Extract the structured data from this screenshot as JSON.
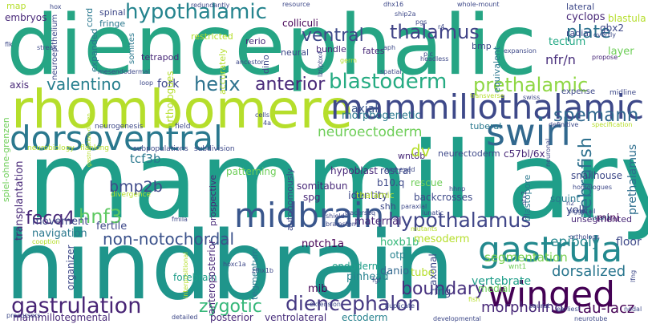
{
  "palette": {
    "yellow_green": "#b5de2b",
    "green": "#6ece58",
    "teal_green": "#1f9e89",
    "teal": "#26828e",
    "blue": "#31688e",
    "indigo": "#3e4989",
    "purple": "#482878",
    "dark": "#440154"
  },
  "words": [
    {
      "text": "diencephalic",
      "color": "#26a584",
      "weight": 5
    },
    {
      "text": "mammillary",
      "color": "#1f9e89",
      "weight": 5
    },
    {
      "text": "hindbrain",
      "color": "#1f958b",
      "weight": 5
    },
    {
      "text": "rhombomere",
      "color": "#b5de2b",
      "weight": 4
    },
    {
      "text": "mammillothalamic",
      "color": "#3e4989",
      "weight": 4
    },
    {
      "text": "dorsoventral",
      "color": "#2a788e",
      "weight": 4
    },
    {
      "text": "swirl",
      "color": "#31688e",
      "weight": 4
    },
    {
      "text": "gastrula",
      "color": "#23898e",
      "weight": 4
    },
    {
      "text": "midbrain",
      "color": "#39568c",
      "weight": 4
    },
    {
      "text": "winged",
      "color": "#440154",
      "weight": 4
    },
    {
      "text": "hypothalamic",
      "color": "#25848e",
      "weight": 3
    },
    {
      "text": "blastoderm",
      "color": "#25ab82",
      "weight": 3
    },
    {
      "text": "gastrulation",
      "color": "#482475",
      "weight": 3
    },
    {
      "text": "diencephalon",
      "color": "#453882",
      "weight": 3
    },
    {
      "text": "hypothalamus",
      "color": "#404688",
      "weight": 3
    },
    {
      "text": "ventral",
      "color": "#3e4989",
      "weight": 3
    },
    {
      "text": "thalamus",
      "color": "#414487",
      "weight": 3
    },
    {
      "text": "spemann",
      "color": "#31688e",
      "weight": 3
    },
    {
      "text": "prethalamic",
      "color": "#8fd744",
      "weight": 3
    },
    {
      "text": "zebrafish",
      "color": "#2d708e",
      "weight": 3
    },
    {
      "text": "helix",
      "color": "#2c728e",
      "weight": 3
    },
    {
      "text": "anterior",
      "color": "#482878",
      "weight": 3
    },
    {
      "text": "valentino",
      "color": "#277f8e",
      "weight": 3
    },
    {
      "text": "plate",
      "color": "#2c728e",
      "weight": 3
    },
    {
      "text": "boundary",
      "color": "#46307e",
      "weight": 3
    },
    {
      "text": "dorsalized",
      "color": "#2a768e",
      "weight": 3
    },
    {
      "text": "zygotic",
      "color": "#35b779",
      "weight": 3
    },
    {
      "text": "hnf3",
      "color": "#5ec962",
      "weight": 3
    },
    {
      "text": "fecq4",
      "color": "#482878",
      "weight": 3
    },
    {
      "text": "non-notochordal",
      "color": "#3b528b",
      "weight": 3
    },
    {
      "text": "neuroectoderm",
      "color": "#6ece58",
      "weight": 2
    },
    {
      "text": "bmp2b",
      "color": "#3e4989",
      "weight": 2
    },
    {
      "text": "epiboly",
      "color": "#24868e",
      "weight": 2
    },
    {
      "text": "morpholino",
      "color": "#482878",
      "weight": 2
    },
    {
      "text": "tau-lacz",
      "color": "#440154",
      "weight": 2
    },
    {
      "text": "segmentation",
      "color": "#7ad151",
      "weight": 2
    },
    {
      "text": "vertebrate",
      "color": "#1f9e89",
      "weight": 2
    },
    {
      "text": "mammillotegmental",
      "color": "#482878",
      "weight": 2
    },
    {
      "text": "ventrolateral",
      "color": "#472d7b",
      "weight": 2
    },
    {
      "text": "ectoderm",
      "color": "#26828e",
      "weight": 2
    },
    {
      "text": "posterior",
      "color": "#482878",
      "weight": 2
    },
    {
      "text": "prethalamus",
      "color": "#2e6e8e",
      "weight": 2
    },
    {
      "text": "axial",
      "color": "#39568c",
      "weight": 2
    },
    {
      "text": "morphogenetic",
      "color": "#2a788e",
      "weight": 2
    },
    {
      "text": "nfr/n",
      "color": "#472d7b",
      "weight": 2
    },
    {
      "text": "tectum",
      "color": "#22a884",
      "weight": 2
    },
    {
      "text": "layer",
      "color": "#6ece58",
      "weight": 2
    },
    {
      "text": "cyclops",
      "color": "#482878",
      "weight": 2
    },
    {
      "text": "gbx2",
      "color": "#3e4989",
      "weight": 2
    },
    {
      "text": "blastula",
      "color": "#b5de2b",
      "weight": 2
    },
    {
      "text": "tcf3b",
      "color": "#2a788e",
      "weight": 2
    },
    {
      "text": "fork",
      "color": "#3e4989",
      "weight": 2
    },
    {
      "text": "orthologues",
      "color": "#b5de2b",
      "weight": 2
    },
    {
      "text": "hypoblast",
      "color": "#482878",
      "weight": 2
    },
    {
      "text": "patterning",
      "color": "#6ece58",
      "weight": 2
    },
    {
      "text": "transplantation",
      "color": "#482878",
      "weight": 2
    },
    {
      "text": "navigation",
      "color": "#2a788e",
      "weight": 2
    },
    {
      "text": "movement",
      "color": "#3e4989",
      "weight": 2
    },
    {
      "text": "fertile",
      "color": "#3e4989",
      "weight": 2
    },
    {
      "text": "maternal",
      "color": "#482878",
      "weight": 2
    },
    {
      "text": "notch1a",
      "color": "#440154",
      "weight": 2
    },
    {
      "text": "hoxb1b",
      "color": "#35b779",
      "weight": 2
    },
    {
      "text": "mesoderm",
      "color": "#b5de2b",
      "weight": 2
    },
    {
      "text": "endoderm",
      "color": "#1f9e89",
      "weight": 2
    },
    {
      "text": "pinhead",
      "color": "#26828e",
      "weight": 2
    },
    {
      "text": "mib",
      "color": "#440154",
      "weight": 2
    },
    {
      "text": "danio",
      "color": "#31688e",
      "weight": 2
    },
    {
      "text": "forebrain",
      "color": "#1f9e89",
      "weight": 2
    },
    {
      "text": "organizer",
      "color": "#3e4989",
      "weight": 2
    },
    {
      "text": "anteroposterior",
      "color": "#482878",
      "weight": 2
    },
    {
      "text": "tegmentum",
      "color": "#2a788e",
      "weight": 2
    },
    {
      "text": "rfng",
      "color": "#3e4989",
      "weight": 2
    },
    {
      "text": "medial",
      "color": "#6ece58",
      "weight": 2
    },
    {
      "text": "tube",
      "color": "#b5de2b",
      "weight": 2
    },
    {
      "text": "axonal",
      "color": "#3e4989",
      "weight": 2
    },
    {
      "text": "otp",
      "color": "#26828e",
      "weight": 2
    },
    {
      "text": "floor",
      "color": "#3e4989",
      "weight": 2
    },
    {
      "text": "trunk",
      "color": "#26828e",
      "weight": 1
    },
    {
      "text": "mini",
      "color": "#440154",
      "weight": 1
    },
    {
      "text": "yolk",
      "color": "#3e4989",
      "weight": 1
    },
    {
      "text": "squint",
      "color": "#2a788e",
      "weight": 1
    },
    {
      "text": "snailhouse",
      "color": "#3e4989",
      "weight": 1
    },
    {
      "text": "c57bl/6x",
      "color": "#482878",
      "weight": 1
    },
    {
      "text": "blastopore",
      "color": "#2a788e",
      "weight": 1
    },
    {
      "text": "tuberal",
      "color": "#2a788e",
      "weight": 1
    },
    {
      "text": "neurectoderm",
      "color": "#3e4989",
      "weight": 1
    },
    {
      "text": "wnt8b",
      "color": "#482878",
      "weight": 1
    },
    {
      "text": "dv",
      "color": "#b5de2b",
      "weight": 1
    },
    {
      "text": "rostral",
      "color": "#3e4989",
      "weight": 1
    },
    {
      "text": "b10.q",
      "color": "#3e4989",
      "weight": 1
    },
    {
      "text": "rescue",
      "color": "#6ece58",
      "weight": 1
    },
    {
      "text": "identity",
      "color": "#3e4989",
      "weight": 1
    },
    {
      "text": "backcrosses",
      "color": "#3e4989",
      "weight": 1
    },
    {
      "text": "somitabun",
      "color": "#482878",
      "weight": 1
    },
    {
      "text": "thalamic",
      "color": "#b5de2b",
      "weight": 1
    },
    {
      "text": "spg",
      "color": "#482878",
      "weight": 1
    },
    {
      "text": "prospective",
      "color": "#482878",
      "weight": 1
    },
    {
      "text": "autonomously",
      "color": "#3e4989",
      "weight": 1
    },
    {
      "text": "shh",
      "color": "#3e4989",
      "weight": 1
    },
    {
      "text": "unsegmented",
      "color": "#482878",
      "weight": 1
    },
    {
      "text": "neural",
      "color": "#3e4989",
      "weight": 1
    },
    {
      "text": "rerio",
      "color": "#482878",
      "weight": 1
    },
    {
      "text": "dino",
      "color": "#3e4989",
      "weight": 1
    },
    {
      "text": "accurately",
      "color": "#b5de2b",
      "weight": 1
    },
    {
      "text": "restricted",
      "color": "#b5de2b",
      "weight": 1
    },
    {
      "text": "bundle",
      "color": "#482878",
      "weight": 1
    },
    {
      "text": "colliculi",
      "color": "#440154",
      "weight": 1
    },
    {
      "text": "fates",
      "color": "#482878",
      "weight": 1
    },
    {
      "text": "equivalent",
      "color": "#2a788e",
      "weight": 1
    },
    {
      "text": "lateral",
      "color": "#3e4989",
      "weight": 1
    },
    {
      "text": "radial",
      "color": "#3e4989",
      "weight": 1
    },
    {
      "text": "bmp",
      "color": "#3e4989",
      "weight": 1
    },
    {
      "text": "neuroepithelium",
      "color": "#3e4989",
      "weight": 1
    },
    {
      "text": "embryos",
      "color": "#482878",
      "weight": 1
    },
    {
      "text": "spinal",
      "color": "#3e4989",
      "weight": 1
    },
    {
      "text": "fringe",
      "color": "#2a788e",
      "weight": 1
    },
    {
      "text": "cord",
      "color": "#2a788e",
      "weight": 1
    },
    {
      "text": "somites",
      "color": "#2a788e",
      "weight": 1
    },
    {
      "text": "expanded",
      "color": "#2a788e",
      "weight": 1
    },
    {
      "text": "tetrapod",
      "color": "#482878",
      "weight": 1
    },
    {
      "text": "map",
      "color": "#b5de2b",
      "weight": 1
    },
    {
      "text": "axis",
      "color": "#482878",
      "weight": 1
    },
    {
      "text": "spiel-ohne-grenzen",
      "color": "#6ece58",
      "weight": 1
    },
    {
      "text": "expense",
      "color": "#3e4989",
      "weight": 1
    },
    {
      "text": "midline",
      "color": "#3e4989",
      "weight": 1
    },
    {
      "text": "divergence",
      "color": "#b5de2b",
      "weight": 1
    },
    {
      "text": "neurogenesis",
      "color": "#3e4989",
      "weight": 1
    },
    {
      "text": "neurobiology",
      "color": "#b5de2b",
      "weight": 1
    },
    {
      "text": "subpopulations",
      "color": "#3e4989",
      "weight": 1
    },
    {
      "text": "subdivision",
      "color": "#3e4989",
      "weight": 1
    },
    {
      "text": "flanking",
      "color": "#b5de2b",
      "weight": 1
    },
    {
      "text": "field",
      "color": "#3e4989",
      "weight": 1
    },
    {
      "text": "redundantly",
      "color": "#3e4989",
      "weight": 1
    },
    {
      "text": "resource",
      "color": "#3e4989",
      "weight": 1
    },
    {
      "text": "dhx16",
      "color": "#3e4989",
      "weight": 1
    },
    {
      "text": "whole-mount",
      "color": "#3e4989",
      "weight": 1
    },
    {
      "text": "hox",
      "color": "#3e4989",
      "weight": 1
    },
    {
      "text": "ship2a",
      "color": "#3e4989",
      "weight": 1
    },
    {
      "text": "pgs",
      "color": "#3e4989",
      "weight": 1
    },
    {
      "text": "r4",
      "color": "#3e4989",
      "weight": 1
    },
    {
      "text": "streak",
      "color": "#3e4989",
      "weight": 1
    },
    {
      "text": "flk",
      "color": "#3e4989",
      "weight": 1
    },
    {
      "text": "ancestor",
      "color": "#3e4989",
      "weight": 1
    },
    {
      "text": "germ",
      "color": "#b5de2b",
      "weight": 1
    },
    {
      "text": "overtly",
      "color": "#3e4989",
      "weight": 1
    },
    {
      "text": "propose",
      "color": "#482878",
      "weight": 1
    },
    {
      "text": "wnt1",
      "color": "#6ece58",
      "weight": 1
    },
    {
      "text": "homologues",
      "color": "#3e4989",
      "weight": 1
    },
    {
      "text": "definitive",
      "color": "#3e4989",
      "weight": 1
    },
    {
      "text": "specification",
      "color": "#b5de2b",
      "weight": 1
    },
    {
      "text": "transverse",
      "color": "#b5de2b",
      "weight": 1
    },
    {
      "text": "swiss",
      "color": "#3e4989",
      "weight": 1
    },
    {
      "text": "piggytail",
      "color": "#3e4989",
      "weight": 1
    },
    {
      "text": "orthologs",
      "color": "#3e4989",
      "weight": 1
    },
    {
      "text": "nodal",
      "color": "#3e4989",
      "weight": 1
    },
    {
      "text": "neurotube",
      "color": "#3e4989",
      "weight": 1
    },
    {
      "text": "earliest",
      "color": "#3e4989",
      "weight": 1
    },
    {
      "text": "seurat",
      "color": "#3e4989",
      "weight": 1
    },
    {
      "text": "developmental",
      "color": "#3e4989",
      "weight": 1
    },
    {
      "text": "extension",
      "color": "#3e4989",
      "weight": 1
    },
    {
      "text": "duplicate",
      "color": "#3e4989",
      "weight": 1
    },
    {
      "text": "mutants",
      "color": "#b5de2b",
      "weight": 1
    },
    {
      "text": "lunatic",
      "color": "#3e4989",
      "weight": 1
    },
    {
      "text": "paraxial",
      "color": "#3e4989",
      "weight": 1
    },
    {
      "text": "tracerseq",
      "color": "#3e4989",
      "weight": 1
    },
    {
      "text": "shield",
      "color": "#3e4989",
      "weight": 1
    },
    {
      "text": "brainstem",
      "color": "#3e4989",
      "weight": 1
    },
    {
      "text": "hoxc1a",
      "color": "#3e4989",
      "weight": 1
    },
    {
      "text": "zfhx1b",
      "color": "#3e4989",
      "weight": 1
    },
    {
      "text": "fgf",
      "color": "#3e4989",
      "weight": 1
    },
    {
      "text": "fish",
      "color": "#b5de2b",
      "weight": 1
    },
    {
      "text": "precursors",
      "color": "#3e4989",
      "weight": 1
    },
    {
      "text": "detailed",
      "color": "#3e4989",
      "weight": 1
    },
    {
      "text": "interpositional",
      "color": "#b5de2b",
      "weight": 1
    },
    {
      "text": "cooption",
      "color": "#b5de2b",
      "weight": 1
    },
    {
      "text": "fmila",
      "color": "#3e4989",
      "weight": 1
    },
    {
      "text": "gastrulation-driven",
      "color": "#b5de2b",
      "weight": 1
    },
    {
      "text": "hhnp",
      "color": "#3e4989",
      "weight": 1
    },
    {
      "text": "one-eyed",
      "color": "#3e4989",
      "weight": 1
    },
    {
      "text": "neuronal",
      "color": "#3e4989",
      "weight": 1
    },
    {
      "text": "otx2",
      "color": "#3e4989",
      "weight": 1
    },
    {
      "text": "mesendodermal",
      "color": "#3e4989",
      "weight": 1
    },
    {
      "text": "loop",
      "color": "#3e4989",
      "weight": 1
    },
    {
      "text": "cells",
      "color": "#3e4989",
      "weight": 1
    },
    {
      "text": "4a",
      "color": "#3e4989",
      "weight": 1
    },
    {
      "text": "lzr/pbx4",
      "color": "#3e4989",
      "weight": 1
    },
    {
      "text": "aph",
      "color": "#3e4989",
      "weight": 1
    },
    {
      "text": "p.c",
      "color": "#3e4989",
      "weight": 1
    },
    {
      "text": "spatial",
      "color": "#3e4989",
      "weight": 1
    },
    {
      "text": "expansion",
      "color": "#3e4989",
      "weight": 1
    },
    {
      "text": "n2",
      "color": "#3e4989",
      "weight": 1
    },
    {
      "text": "lfng",
      "color": "#3e4989",
      "weight": 1
    },
    {
      "text": "headless",
      "color": "#3e4989",
      "weight": 1
    }
  ]
}
